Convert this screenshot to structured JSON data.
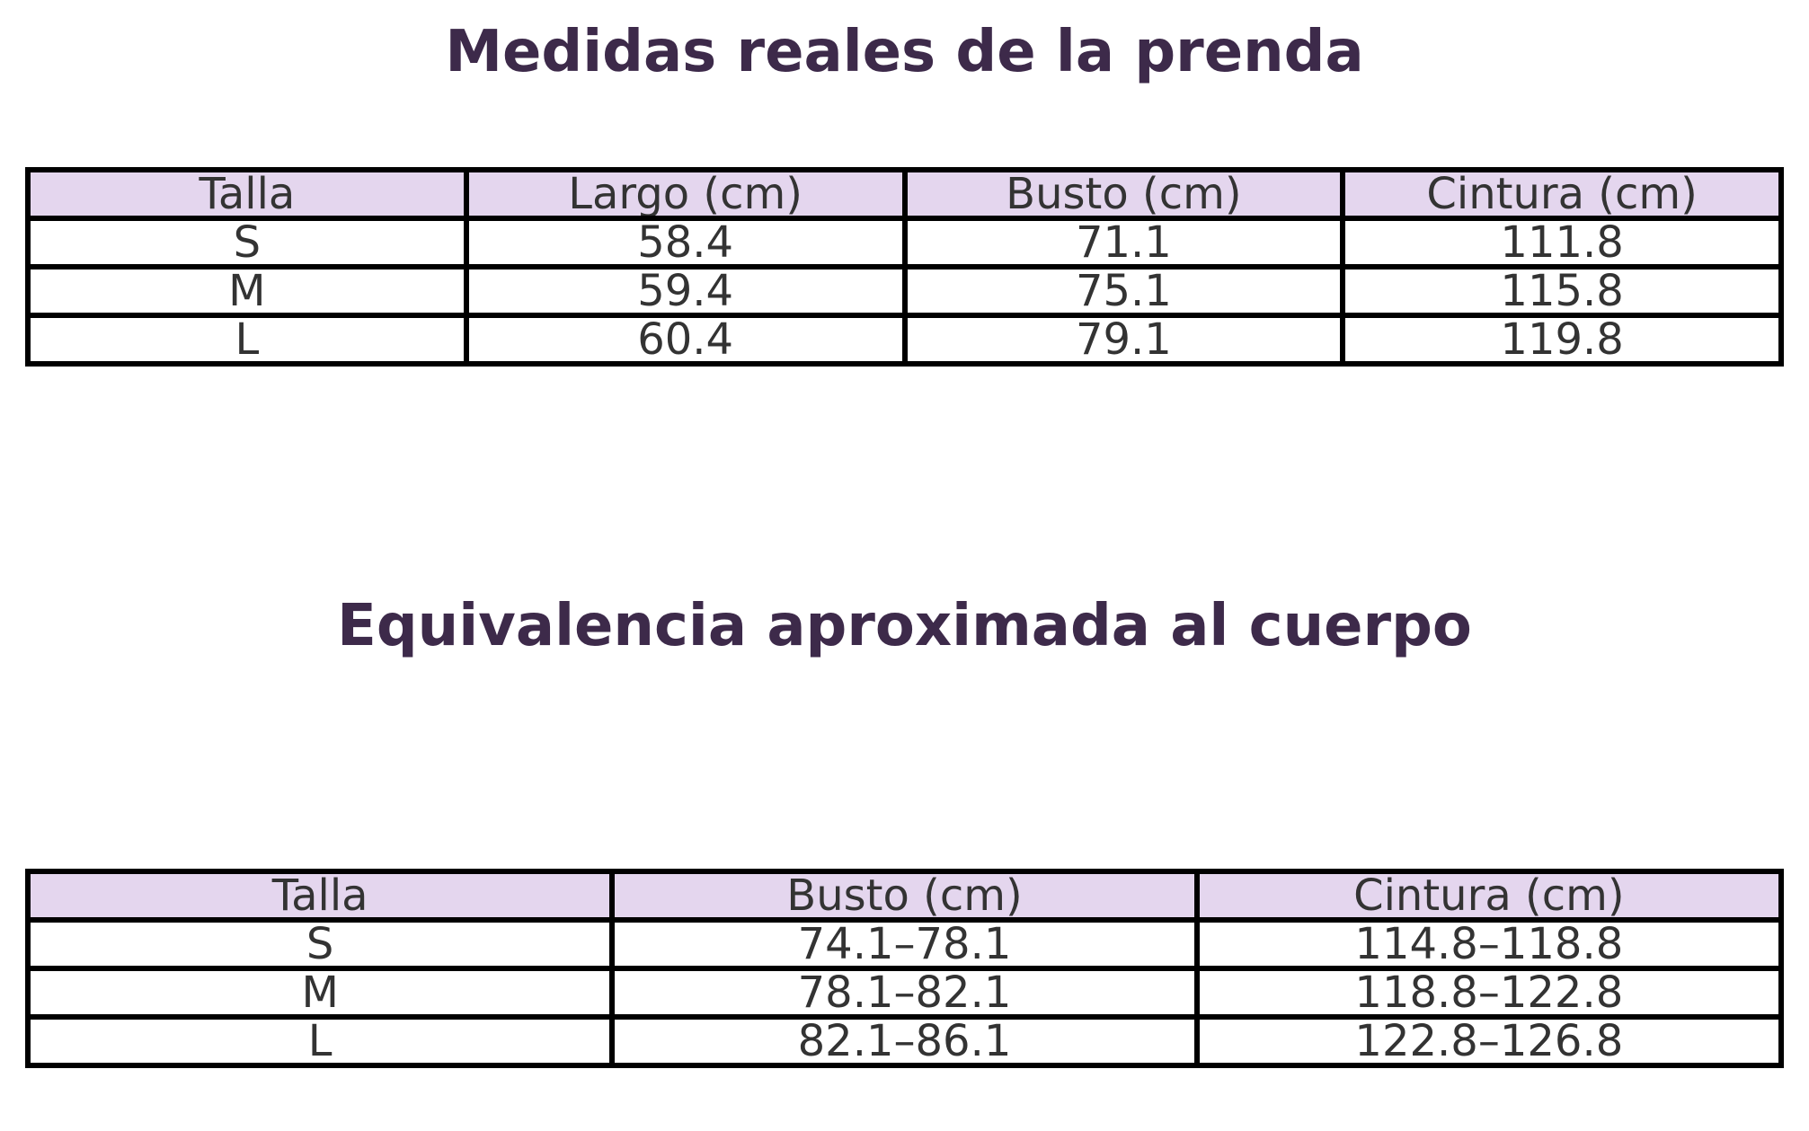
{
  "sections": [
    {
      "title": "Medidas reales de la prenda",
      "table": {
        "header": [
          "Talla",
          "Largo (cm)",
          "Busto (cm)",
          "Cintura (cm)"
        ],
        "rows": [
          [
            "S",
            "58.4",
            "71.1",
            "111.8"
          ],
          [
            "M",
            "59.4",
            "75.1",
            "115.8"
          ],
          [
            "L",
            "60.4",
            "79.1",
            "119.8"
          ]
        ]
      }
    },
    {
      "title": "Equivalencia aproximada al cuerpo",
      "table": {
        "header": [
          "Talla",
          "Busto (cm)",
          "Cintura (cm)"
        ],
        "rows": [
          [
            "S",
            "74.1–78.1",
            "114.8–118.8"
          ],
          [
            "M",
            "78.1–82.1",
            "118.8–122.8"
          ],
          [
            "L",
            "82.1–86.1",
            "122.8–126.8"
          ]
        ]
      }
    }
  ]
}
